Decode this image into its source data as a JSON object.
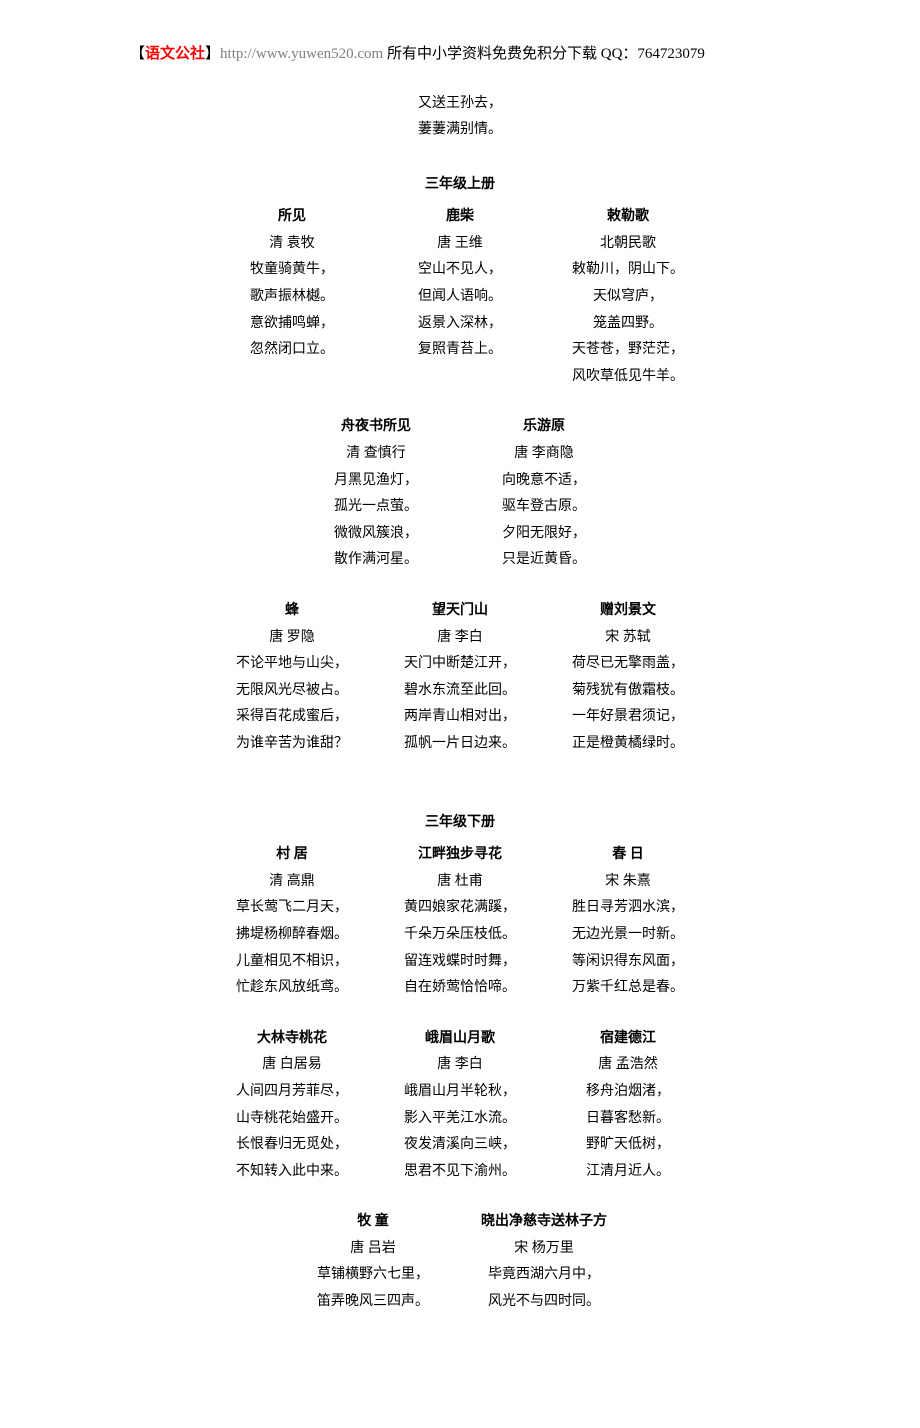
{
  "header": {
    "bracket_open": "【",
    "brand": "语文公社",
    "bracket_close": "】",
    "url": "http://www.yuwen520.com",
    "desc": " 所有中小学资料免费免积分下载 QQ：",
    "qq": "764723079"
  },
  "couplet": {
    "l1": "又送王孙去，",
    "l2": "萋萋满别情。"
  },
  "sections": [
    {
      "title": "三年级上册",
      "rows": [
        [
          {
            "title": "所见",
            "author": "清  袁牧",
            "lines": [
              "牧童骑黄牛，",
              "歌声振林樾。",
              "意欲捕鸣蝉，",
              "忽然闭口立。"
            ]
          },
          {
            "title": "鹿柴",
            "author": "唐  王维",
            "lines": [
              "空山不见人，",
              "但闻人语响。",
              "返景入深林，",
              "复照青苔上。"
            ]
          },
          {
            "title": "敕勒歌",
            "author": "北朝民歌",
            "lines": [
              "敕勒川，阴山下。",
              "天似穹庐，",
              "笼盖四野。",
              "天苍苍，野茫茫，",
              "风吹草低见牛羊。"
            ]
          }
        ],
        [
          {
            "title": "舟夜书所见",
            "author": "清  查慎行",
            "lines": [
              "月黑见渔灯，",
              "孤光一点萤。",
              "微微风簇浪，",
              "散作满河星。"
            ]
          },
          {
            "title": "乐游原",
            "author": "唐  李商隐",
            "lines": [
              "向晚意不适，",
              "驱车登古原。",
              "夕阳无限好，",
              "只是近黄昏。"
            ]
          }
        ],
        [
          {
            "title": "蜂",
            "author": "唐  罗隐",
            "lines": [
              "不论平地与山尖，",
              "无限风光尽被占。",
              "采得百花成蜜后，",
              "为谁辛苦为谁甜？"
            ]
          },
          {
            "title": "望天门山",
            "author": "唐  李白",
            "lines": [
              "天门中断楚江开，",
              "碧水东流至此回。",
              "两岸青山相对出，",
              "孤帆一片日边来。"
            ]
          },
          {
            "title": "赠刘景文",
            "author": "宋  苏轼",
            "lines": [
              "荷尽已无擎雨盖，",
              "菊残犹有傲霜枝。",
              "一年好景君须记，",
              "正是橙黄橘绿时。"
            ]
          }
        ]
      ]
    },
    {
      "title": "三年级下册",
      "rows": [
        [
          {
            "title": "村  居",
            "author": "清  高鼎",
            "lines": [
              "草长莺飞二月天，",
              "拂堤杨柳醉春烟。",
              "儿童相见不相识，",
              "忙趁东风放纸鸢。"
            ]
          },
          {
            "title": "江畔独步寻花",
            "author": "唐  杜甫",
            "lines": [
              "黄四娘家花满蹊，",
              "千朵万朵压枝低。",
              "留连戏蝶时时舞，",
              "自在娇莺恰恰啼。"
            ]
          },
          {
            "title": "春  日",
            "author": "宋  朱熹",
            "lines": [
              "胜日寻芳泗水滨，",
              "无边光景一时新。",
              "等闲识得东风面，",
              "万紫千红总是春。"
            ]
          }
        ],
        [
          {
            "title": "大林寺桃花",
            "author": "唐  白居易",
            "lines": [
              "人间四月芳菲尽，",
              "山寺桃花始盛开。",
              "长恨春归无觅处，",
              "不知转入此中来。"
            ]
          },
          {
            "title": "峨眉山月歌",
            "author": "唐  李白",
            "lines": [
              "峨眉山月半轮秋，",
              "影入平羌江水流。",
              "夜发清溪向三峡，",
              "思君不见下渝州。"
            ]
          },
          {
            "title": "宿建德江",
            "author": "唐  孟浩然",
            "lines": [
              "移舟泊烟渚，",
              "日暮客愁新。",
              "野旷天低树，",
              "江清月近人。"
            ]
          }
        ],
        [
          {
            "title": "牧  童",
            "author": "唐  吕岩",
            "lines": [
              "草铺横野六七里，",
              "笛弄晚风三四声。"
            ]
          },
          {
            "title": "晓出净慈寺送林子方",
            "author": "宋  杨万里",
            "lines": [
              "毕竟西湖六月中，",
              "风光不与四时同。"
            ]
          }
        ]
      ]
    }
  ]
}
